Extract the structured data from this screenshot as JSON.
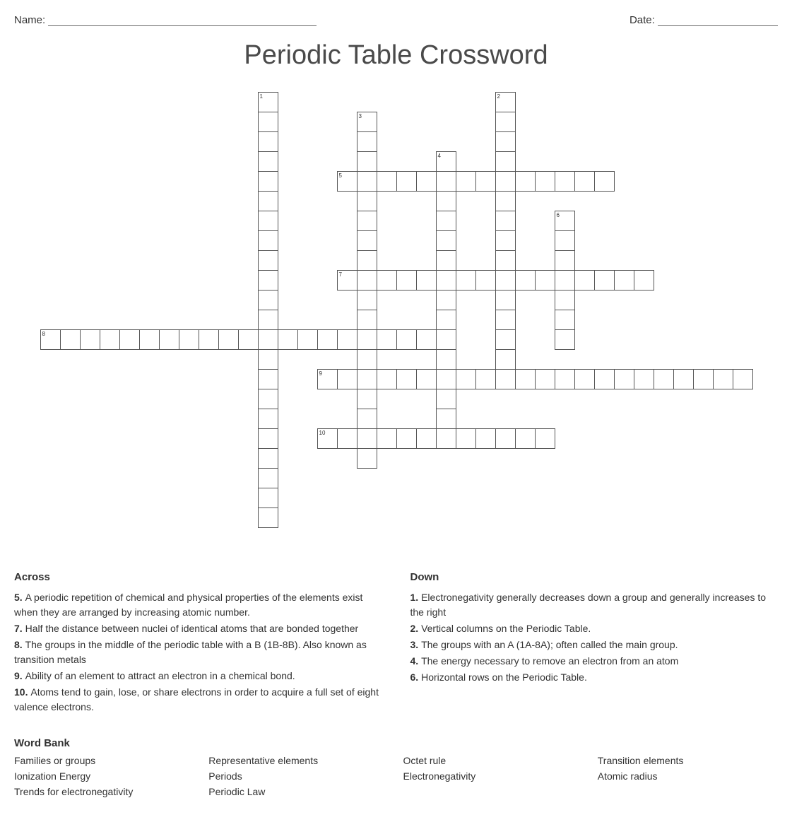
{
  "header": {
    "name_label": "Name:",
    "date_label": "Date:",
    "name_line_width": 380,
    "date_line_width": 170
  },
  "title": "Periodic Table Crossword",
  "grid": {
    "cell_size": 28,
    "cols": 36,
    "rows": 22,
    "border_color": "#555555",
    "bg_color": "#ffffff",
    "entries": [
      {
        "num": 1,
        "row": 0,
        "col": 11,
        "dir": "down",
        "len": 22
      },
      {
        "num": 2,
        "row": 0,
        "col": 23,
        "dir": "down",
        "len": 15
      },
      {
        "num": 3,
        "row": 1,
        "col": 16,
        "dir": "down",
        "len": 18
      },
      {
        "num": 4,
        "row": 3,
        "col": 20,
        "dir": "down",
        "len": 14
      },
      {
        "num": 5,
        "row": 4,
        "col": 15,
        "dir": "across",
        "len": 14
      },
      {
        "num": 6,
        "row": 6,
        "col": 26,
        "dir": "down",
        "len": 7
      },
      {
        "num": 7,
        "row": 9,
        "col": 15,
        "dir": "across",
        "len": 16
      },
      {
        "num": 8,
        "row": 12,
        "col": 0,
        "dir": "across",
        "len": 21
      },
      {
        "num": 9,
        "row": 14,
        "col": 14,
        "dir": "across",
        "len": 22
      },
      {
        "num": 10,
        "row": 17,
        "col": 14,
        "dir": "across",
        "len": 12
      }
    ]
  },
  "clues": {
    "across_title": "Across",
    "down_title": "Down",
    "across": [
      {
        "n": "5.",
        "t": "A periodic repetition of chemical and physical properties of the elements exist when they are arranged by increasing atomic number."
      },
      {
        "n": "7.",
        "t": "Half the distance between nuclei of identical atoms that are bonded together"
      },
      {
        "n": "8.",
        "t": "The groups in the middle of the periodic table with a B (1B-8B). Also known as transition metals"
      },
      {
        "n": "9.",
        "t": "Ability of an element to attract an electron in a chemical bond."
      },
      {
        "n": "10.",
        "t": "Atoms tend to gain, lose, or share electrons in order to acquire a full set of eight valence electrons."
      }
    ],
    "down": [
      {
        "n": "1.",
        "t": "Electronegativity generally decreases down a group and generally increases to the right"
      },
      {
        "n": "2.",
        "t": "Vertical columns on the Periodic Table."
      },
      {
        "n": "3.",
        "t": "The groups with an A (1A-8A); often called the main group."
      },
      {
        "n": "4.",
        "t": "The energy necessary to remove an electron from an atom"
      },
      {
        "n": "6.",
        "t": "Horizontal rows on the Periodic Table."
      }
    ]
  },
  "wordbank": {
    "title": "Word Bank",
    "items": [
      "Families or groups",
      "Representative elements",
      "Octet rule",
      "Transition elements",
      "Ionization Energy",
      "Periods",
      "Electronegativity",
      "Atomic radius",
      "Trends for electronegativity",
      "Periodic Law"
    ]
  }
}
